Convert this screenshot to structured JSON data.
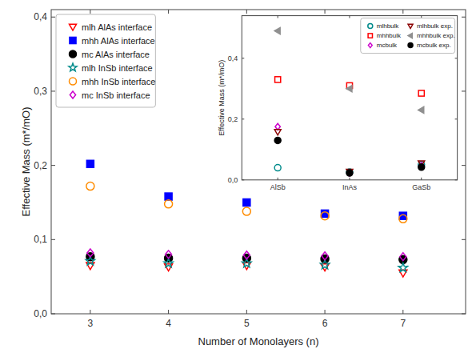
{
  "chart_data": [
    {
      "type": "scatter",
      "xlabel": "Number of Monolayers (n)",
      "ylabel": "Effective Mass (m*/mO)",
      "x": [
        3,
        4,
        5,
        6,
        7
      ],
      "xlim": [
        2.5,
        7.8
      ],
      "xticks": [
        3,
        4,
        5,
        6,
        7
      ],
      "ylim": [
        0.0,
        0.41
      ],
      "yticks": [
        {
          "value": 0.0,
          "label": "0,0"
        },
        {
          "value": 0.1,
          "label": "0,1"
        },
        {
          "value": 0.2,
          "label": "0,2"
        },
        {
          "value": 0.3,
          "label": "0,3"
        },
        {
          "value": 0.4,
          "label": "0,4"
        }
      ],
      "grid": false,
      "legend": "upper left",
      "series": [
        {
          "name": "mlh AlAs interface",
          "color": "#FF0000",
          "marker": "triangle-down-open",
          "values": [
            0.065,
            0.063,
            0.065,
            0.063,
            0.055
          ]
        },
        {
          "name": "mhh AlAs interface",
          "color": "#0000FF",
          "marker": "square",
          "values": [
            0.202,
            0.158,
            0.15,
            0.135,
            0.132
          ]
        },
        {
          "name": "mc AlAs interface",
          "color": "#000000",
          "marker": "circle",
          "values": [
            0.077,
            0.075,
            0.075,
            0.074,
            0.073
          ]
        },
        {
          "name": "mlh InSb interface",
          "color": "#008B8B",
          "marker": "star-open",
          "values": [
            0.071,
            0.068,
            0.068,
            0.066,
            0.062
          ]
        },
        {
          "name": "mhh InSb interface",
          "color": "#FF8C00",
          "marker": "circle-open",
          "values": [
            0.172,
            0.148,
            0.138,
            0.132,
            0.128
          ]
        },
        {
          "name": "mc InSb interface",
          "color": "#CC00CC",
          "marker": "diamond-open",
          "values": [
            0.082,
            0.08,
            0.079,
            0.078,
            0.077
          ]
        }
      ]
    },
    {
      "type": "scatter",
      "ylabel": "Effective Mass (m*/mO)",
      "categories": [
        "AlSb",
        "InAs",
        "GaSb"
      ],
      "ylim": [
        0.0,
        0.54
      ],
      "yticks": [
        {
          "value": 0.0,
          "label": "0,0"
        },
        {
          "value": 0.2,
          "label": "0,2"
        },
        {
          "value": 0.4,
          "label": "0,4"
        }
      ],
      "grid": false,
      "legend": "upper right",
      "series": [
        {
          "name": "mlhbulk",
          "color": "#008B8B",
          "marker": "circle-open",
          "values": [
            0.04,
            0.026,
            0.05
          ]
        },
        {
          "name": "mhhbulk",
          "color": "#FF0000",
          "marker": "square-open",
          "values": [
            0.33,
            0.31,
            0.285
          ]
        },
        {
          "name": "mcbulk",
          "color": "#CC00CC",
          "marker": "diamond-open",
          "values": [
            0.175,
            0.023,
            0.047
          ]
        },
        {
          "name": "mlhbulk exp.",
          "color": "#8B0000",
          "marker": "triangle-down-open",
          "values": [
            0.158,
            0.027,
            0.055
          ]
        },
        {
          "name": "mhhbulk exp.",
          "color": "#909090",
          "marker": "triangle-left",
          "values": [
            0.49,
            0.3,
            0.23
          ]
        },
        {
          "name": "mcbulk exp.",
          "color": "#000000",
          "marker": "circle",
          "values": [
            0.13,
            0.023,
            0.042
          ]
        }
      ]
    }
  ]
}
